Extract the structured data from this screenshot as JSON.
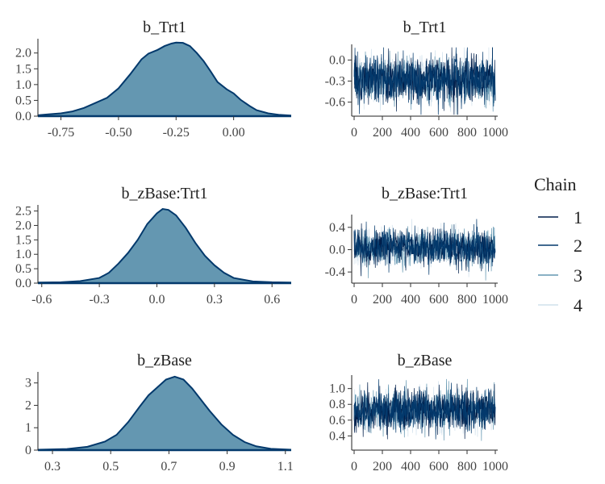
{
  "chart_data": {
    "type": "bayesplot_mcmc",
    "legend": {
      "title": "Chain",
      "entries": [
        "1",
        "2",
        "3",
        "4"
      ],
      "colors": [
        "#011f4b",
        "#03396c",
        "#6497b1",
        "#d1e1ec"
      ],
      "position": "right"
    },
    "density_fill": "#6497b1",
    "density_line": "#03396c",
    "panels": [
      {
        "parameter": "b_Trt1",
        "density": {
          "title": "b_Trt1",
          "xlim": [
            -0.85,
            0.25
          ],
          "ylim": [
            0,
            2.35
          ],
          "xticks": [
            -0.75,
            -0.5,
            -0.25,
            0.0
          ],
          "xtick_labels": [
            "-0.75",
            "-0.50",
            "-0.25",
            "0.00"
          ],
          "yticks": [
            0.0,
            0.5,
            1.0,
            1.5,
            2.0
          ],
          "ytick_labels": [
            "0.0",
            "0.5",
            "1.0",
            "1.5",
            "2.0"
          ],
          "x": [
            -0.85,
            -0.8,
            -0.75,
            -0.7,
            -0.65,
            -0.6,
            -0.55,
            -0.5,
            -0.45,
            -0.4,
            -0.37,
            -0.33,
            -0.3,
            -0.27,
            -0.25,
            -0.22,
            -0.19,
            -0.16,
            -0.13,
            -0.1,
            -0.07,
            -0.03,
            0.0,
            0.03,
            0.07,
            0.1,
            0.15,
            0.2,
            0.25
          ],
          "y": [
            0.03,
            0.06,
            0.09,
            0.15,
            0.26,
            0.42,
            0.58,
            0.88,
            1.32,
            1.8,
            1.98,
            2.1,
            2.22,
            2.3,
            2.33,
            2.32,
            2.22,
            2.0,
            1.74,
            1.42,
            1.08,
            0.85,
            0.72,
            0.52,
            0.32,
            0.19,
            0.09,
            0.04,
            0.02
          ]
        },
        "trace": {
          "title": "b_Trt1",
          "xlim": [
            0,
            1000
          ],
          "ylim": [
            -0.8,
            0.2
          ],
          "xticks": [
            0,
            200,
            400,
            600,
            800,
            1000
          ],
          "xtick_labels": [
            "0",
            "200",
            "400",
            "600",
            "800",
            "1000"
          ],
          "yticks": [
            0.0,
            -0.3,
            -0.6
          ],
          "ytick_labels": [
            "0.0",
            "-0.3",
            "-0.6"
          ],
          "center": -0.27,
          "spread": 0.17,
          "min": -0.78,
          "max": 0.18
        }
      },
      {
        "parameter": "b_zBase:Trt1",
        "density": {
          "title": "b_zBase:Trt1",
          "xlim": [
            -0.62,
            0.7
          ],
          "ylim": [
            0,
            2.6
          ],
          "xticks": [
            -0.6,
            -0.3,
            0.0,
            0.3,
            0.6
          ],
          "xtick_labels": [
            "-0.6",
            "-0.3",
            "0.0",
            "0.3",
            "0.6"
          ],
          "yticks": [
            0.0,
            0.5,
            1.0,
            1.5,
            2.0,
            2.5
          ],
          "ytick_labels": [
            "0.0",
            "0.5",
            "1.0",
            "1.5",
            "2.0",
            "2.5"
          ],
          "x": [
            -0.62,
            -0.5,
            -0.4,
            -0.3,
            -0.25,
            -0.2,
            -0.15,
            -0.1,
            -0.05,
            0.0,
            0.03,
            0.06,
            0.1,
            0.15,
            0.2,
            0.25,
            0.3,
            0.35,
            0.4,
            0.5,
            0.6,
            0.7
          ],
          "y": [
            0.02,
            0.03,
            0.07,
            0.18,
            0.36,
            0.68,
            1.05,
            1.5,
            2.05,
            2.42,
            2.57,
            2.54,
            2.35,
            1.92,
            1.4,
            0.95,
            0.62,
            0.36,
            0.18,
            0.06,
            0.03,
            0.02
          ]
        },
        "trace": {
          "title": "b_zBase:Trt1",
          "xlim": [
            0,
            1000
          ],
          "ylim": [
            -0.6,
            0.6
          ],
          "xticks": [
            0,
            200,
            400,
            600,
            800,
            1000
          ],
          "xtick_labels": [
            "0",
            "200",
            "400",
            "600",
            "800",
            "1000"
          ],
          "yticks": [
            0.4,
            0.0,
            -0.4
          ],
          "ytick_labels": [
            "0.4",
            "0.0",
            "-0.4"
          ],
          "center": 0.04,
          "spread": 0.16,
          "min": -0.57,
          "max": 0.55
        }
      },
      {
        "parameter": "b_zBase",
        "density": {
          "title": "b_zBase",
          "xlim": [
            0.25,
            1.12
          ],
          "ylim": [
            0,
            3.35
          ],
          "xticks": [
            0.3,
            0.5,
            0.7,
            0.9,
            1.1
          ],
          "xtick_labels": [
            "0.3",
            "0.5",
            "0.7",
            "0.9",
            "1.1"
          ],
          "yticks": [
            0,
            1,
            2,
            3
          ],
          "ytick_labels": [
            "0",
            "1",
            "2",
            "3"
          ],
          "x": [
            0.25,
            0.35,
            0.42,
            0.48,
            0.52,
            0.56,
            0.6,
            0.63,
            0.66,
            0.69,
            0.72,
            0.75,
            0.78,
            0.81,
            0.84,
            0.88,
            0.92,
            0.96,
            1.0,
            1.05,
            1.12
          ],
          "y": [
            0.02,
            0.05,
            0.15,
            0.38,
            0.68,
            1.25,
            1.95,
            2.45,
            2.8,
            3.15,
            3.28,
            3.15,
            2.75,
            2.25,
            1.75,
            1.15,
            0.68,
            0.36,
            0.17,
            0.06,
            0.02
          ]
        },
        "trace": {
          "title": "b_zBase",
          "xlim": [
            0,
            1000
          ],
          "ylim": [
            0.22,
            1.15
          ],
          "xticks": [
            0,
            200,
            400,
            600,
            800,
            1000
          ],
          "xtick_labels": [
            "0",
            "200",
            "400",
            "600",
            "800",
            "1000"
          ],
          "yticks": [
            1.0,
            0.8,
            0.6,
            0.4
          ],
          "ytick_labels": [
            "1.0",
            "0.8",
            "0.6",
            "0.4"
          ],
          "center": 0.72,
          "spread": 0.13,
          "min": 0.25,
          "max": 1.12
        }
      }
    ]
  }
}
